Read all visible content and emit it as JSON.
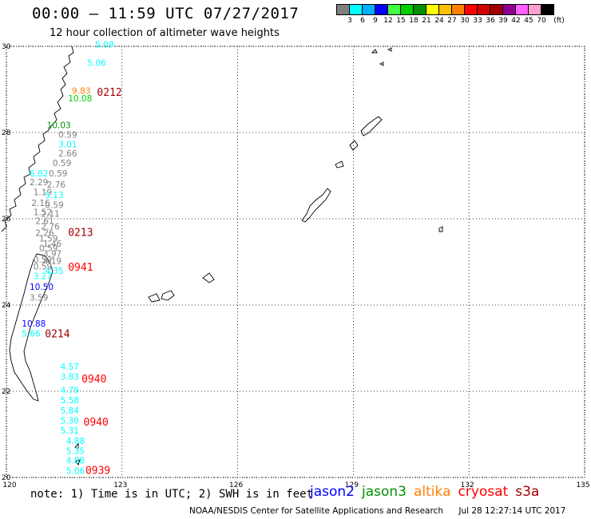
{
  "header": {
    "title": "00:00 – 11:59 UTC 07/27/2017",
    "subtitle": "12 hour collection of altimeter wave heights"
  },
  "legend": {
    "unit": "(ft)",
    "colors": [
      "#808080",
      "#00ffff",
      "#00b0ff",
      "#0000ff",
      "#40ff40",
      "#00d000",
      "#009000",
      "#ffff00",
      "#ffc000",
      "#ff8000",
      "#ff0000",
      "#d00000",
      "#a00000",
      "#900090",
      "#ff60ff",
      "#ffa0d0",
      "#000000"
    ],
    "ticks": [
      "3",
      "6",
      "9",
      "12",
      "15",
      "18",
      "21",
      "24",
      "27",
      "30",
      "33",
      "36",
      "39",
      "42",
      "45",
      "70"
    ]
  },
  "axes": {
    "x_ticks": [
      "120",
      "123",
      "126",
      "129",
      "132",
      "135"
    ],
    "y_ticks": [
      "30",
      "28",
      "26",
      "24",
      "22",
      "20"
    ]
  },
  "wave_heights": [
    {
      "value": "5.09",
      "color": "#00ffff",
      "lat": 29.97,
      "lon": 122.3
    },
    {
      "value": "5.06",
      "color": "#00ffff",
      "lat": 29.55,
      "lon": 122.1
    },
    {
      "value": "9.83",
      "color": "#ff8000",
      "lat": 28.9,
      "lon": 121.7
    },
    {
      "value": "10.08",
      "color": "#00d000",
      "lat": 28.72,
      "lon": 121.6
    },
    {
      "value": "10.03",
      "color": "#009000",
      "lat": 28.1,
      "lon": 121.05
    },
    {
      "value": "0.59",
      "color": "#808080",
      "lat": 27.88,
      "lon": 121.35
    },
    {
      "value": "3.01",
      "color": "#00ffff",
      "lat": 27.66,
      "lon": 121.35
    },
    {
      "value": "2.66",
      "color": "#808080",
      "lat": 27.44,
      "lon": 121.35
    },
    {
      "value": "0.59",
      "color": "#808080",
      "lat": 27.22,
      "lon": 121.2
    },
    {
      "value": "6.02",
      "color": "#00ffff",
      "lat": 26.98,
      "lon": 120.6
    },
    {
      "value": "0.59",
      "color": "#808080",
      "lat": 26.98,
      "lon": 121.1
    },
    {
      "value": "2.29",
      "color": "#808080",
      "lat": 26.78,
      "lon": 120.6
    },
    {
      "value": "2.76",
      "color": "#808080",
      "lat": 26.72,
      "lon": 121.05
    },
    {
      "value": "1.19",
      "color": "#808080",
      "lat": 26.55,
      "lon": 120.7
    },
    {
      "value": "5.13",
      "color": "#00ffff",
      "lat": 26.48,
      "lon": 121.0
    },
    {
      "value": "2.16",
      "color": "#808080",
      "lat": 26.3,
      "lon": 120.65
    },
    {
      "value": "0.59",
      "color": "#808080",
      "lat": 26.25,
      "lon": 121.0
    },
    {
      "value": "1.52",
      "color": "#808080",
      "lat": 26.08,
      "lon": 120.7
    },
    {
      "value": "2.11",
      "color": "#808080",
      "lat": 26.05,
      "lon": 120.9
    },
    {
      "value": "2.61",
      "color": "#808080",
      "lat": 25.88,
      "lon": 120.75
    },
    {
      "value": "2.76",
      "color": "#808080",
      "lat": 25.75,
      "lon": 120.9
    },
    {
      "value": "2.26",
      "color": "#808080",
      "lat": 25.6,
      "lon": 120.75
    },
    {
      "value": "1.59",
      "color": "#808080",
      "lat": 25.47,
      "lon": 120.85
    },
    {
      "value": "1.46",
      "color": "#808080",
      "lat": 25.35,
      "lon": 120.95
    },
    {
      "value": "0.59",
      "color": "#808080",
      "lat": 25.25,
      "lon": 120.85
    },
    {
      "value": "3.97",
      "color": "#808080",
      "lat": 25.12,
      "lon": 120.95
    },
    {
      "value": "0.59",
      "color": "#808080",
      "lat": 24.98,
      "lon": 120.7
    },
    {
      "value": "4.19",
      "color": "#808080",
      "lat": 24.95,
      "lon": 120.95
    },
    {
      "value": "0.59",
      "color": "#808080",
      "lat": 24.82,
      "lon": 120.7
    },
    {
      "value": "4.35",
      "color": "#00ffff",
      "lat": 24.72,
      "lon": 121.0
    },
    {
      "value": "3.27",
      "color": "#00ffff",
      "lat": 24.6,
      "lon": 120.7
    },
    {
      "value": "10.50",
      "color": "#0000ff",
      "lat": 24.35,
      "lon": 120.6
    },
    {
      "value": "3.59",
      "color": "#808080",
      "lat": 24.1,
      "lon": 120.6
    },
    {
      "value": "10.88",
      "color": "#0000ff",
      "lat": 23.5,
      "lon": 120.4
    },
    {
      "value": "5.66",
      "color": "#00ffff",
      "lat": 23.27,
      "lon": 120.4
    },
    {
      "value": "4.57",
      "color": "#00ffff",
      "lat": 22.5,
      "lon": 121.4
    },
    {
      "value": "3.83",
      "color": "#00ffff",
      "lat": 22.27,
      "lon": 121.4
    },
    {
      "value": "4.79",
      "color": "#00ffff",
      "lat": 21.95,
      "lon": 121.4
    },
    {
      "value": "5.58",
      "color": "#00ffff",
      "lat": 21.72,
      "lon": 121.4
    },
    {
      "value": "5.84",
      "color": "#00ffff",
      "lat": 21.48,
      "lon": 121.4
    },
    {
      "value": "5.30",
      "color": "#00ffff",
      "lat": 21.25,
      "lon": 121.4
    },
    {
      "value": "5.31",
      "color": "#00ffff",
      "lat": 21.02,
      "lon": 121.4
    },
    {
      "value": "4.88",
      "color": "#00ffff",
      "lat": 20.78,
      "lon": 121.55
    },
    {
      "value": "5.35",
      "color": "#00ffff",
      "lat": 20.55,
      "lon": 121.55
    },
    {
      "value": "4.88",
      "color": "#00ffff",
      "lat": 20.32,
      "lon": 121.55
    },
    {
      "value": "5.06",
      "color": "#00ffff",
      "lat": 20.08,
      "lon": 121.55
    }
  ],
  "pass_times": [
    {
      "value": "0212",
      "color": "#a00000",
      "lat": 28.85,
      "lon": 122.35
    },
    {
      "value": "0213",
      "color": "#a00000",
      "lat": 25.6,
      "lon": 121.6
    },
    {
      "value": "0941",
      "color": "#ff0000",
      "lat": 24.8,
      "lon": 121.6
    },
    {
      "value": "0214",
      "color": "#a00000",
      "lat": 23.25,
      "lon": 121.0
    },
    {
      "value": "0940",
      "color": "#ff0000",
      "lat": 22.2,
      "lon": 121.95
    },
    {
      "value": "0940",
      "color": "#ff0000",
      "lat": 21.2,
      "lon": 122.0
    },
    {
      "value": "0939",
      "color": "#ff0000",
      "lat": 20.08,
      "lon": 122.05
    }
  ],
  "note": "note: 1) Time is in UTC; 2) SWH is in feet",
  "satellites": [
    {
      "name": "jason2",
      "color": "#0000ff"
    },
    {
      "name": "jason3",
      "color": "#009000"
    },
    {
      "name": "altika",
      "color": "#ff8000"
    },
    {
      "name": "cryosat",
      "color": "#ff0000"
    },
    {
      "name": "s3a",
      "color": "#a00000"
    }
  ],
  "footer": {
    "credit": "NOAA/NESDIS Center for Satellite Applications and Research",
    "timestamp": "Jul 28 12:27:14 UTC 2017"
  }
}
